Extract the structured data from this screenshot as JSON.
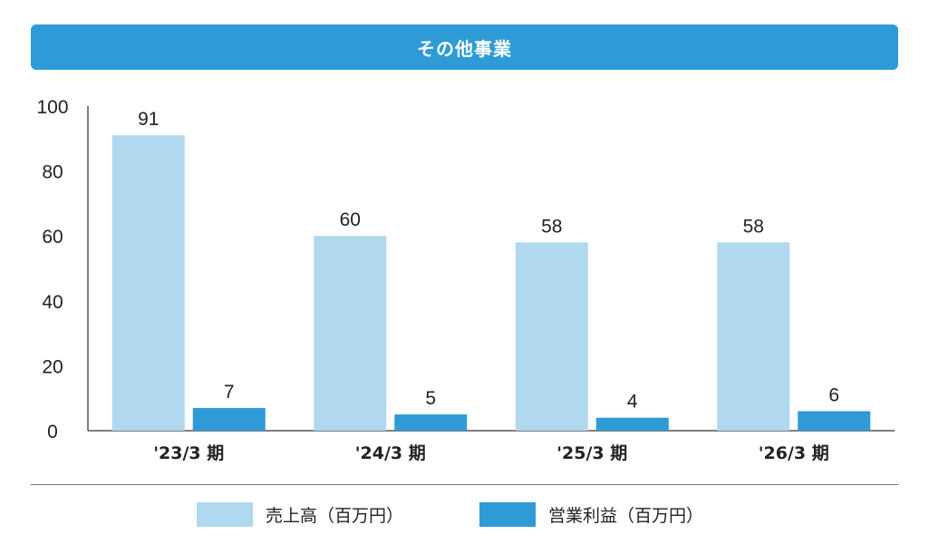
{
  "header": {
    "title": "その他事業"
  },
  "colors": {
    "header_bg": "#2e9bd6",
    "sales": "#b0d8ef",
    "profit": "#2e9bd6"
  },
  "chart_data": {
    "type": "bar",
    "title": "その他事業",
    "categories": [
      "'23/3 期",
      "'24/3 期",
      "'25/3 期",
      "'26/3 期"
    ],
    "series": [
      {
        "name": "売上高（百万円）",
        "values": [
          91,
          60,
          58,
          58
        ],
        "color": "#b0d8ef"
      },
      {
        "name": "営業利益（百万円）",
        "values": [
          7,
          5,
          4,
          6
        ],
        "color": "#2e9bd6"
      }
    ],
    "ylim": [
      0,
      100
    ],
    "yticks": [
      0,
      20,
      40,
      60,
      80,
      100
    ],
    "xlabel": "",
    "ylabel": "",
    "grid": false,
    "legend": "bottom"
  }
}
